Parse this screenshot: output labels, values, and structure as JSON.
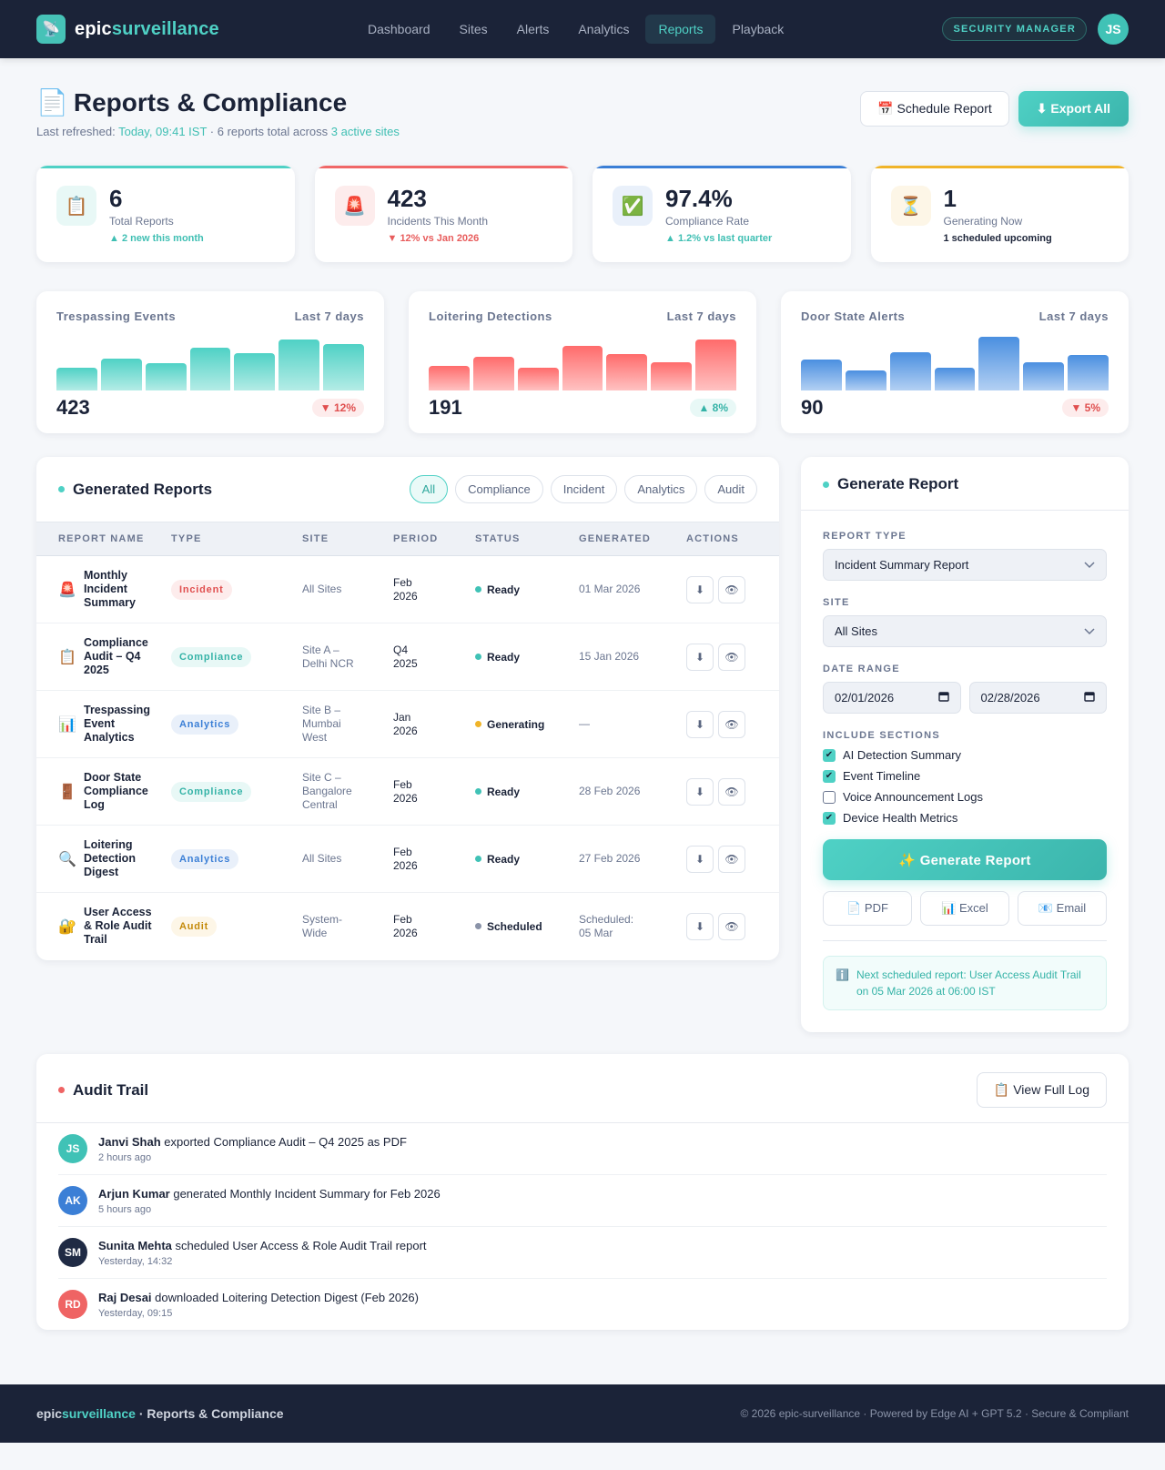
{
  "brand": {
    "prefix": "epic",
    "suffix": "surveillance",
    "icon": "satellite-dish-icon"
  },
  "nav": {
    "links": [
      {
        "label": "Dashboard",
        "active": false
      },
      {
        "label": "Sites",
        "active": false
      },
      {
        "label": "Alerts",
        "active": false
      },
      {
        "label": "Analytics",
        "active": false
      },
      {
        "label": "Reports",
        "active": true
      },
      {
        "label": "Playback",
        "active": false
      }
    ],
    "role": "SECURITY MANAGER",
    "avatar": "JS"
  },
  "header": {
    "title": "Reports & Compliance",
    "title_icon": "📄",
    "subtitle_prefix": "Last refreshed: ",
    "refreshed": "Today, 09:41 IST",
    "subtitle_mid": " · 6 reports total across ",
    "sites": "3 active sites",
    "schedule_label": "📅 Schedule Report",
    "export_label": "⬇ Export All"
  },
  "stats": [
    {
      "icon": "📋",
      "value": "6",
      "label": "Total Reports",
      "delta": "▲ 2 new this month",
      "delta_color": "#3fbfb3",
      "bar": "#4fd1c5",
      "icon_bg": "#e8f8f6"
    },
    {
      "icon": "🚨",
      "value": "423",
      "label": "Incidents This Month",
      "delta": "▼ 12% vs Jan 2026",
      "delta_color": "#e85c5c",
      "bar": "#f06767",
      "icon_bg": "#fdecec"
    },
    {
      "icon": "✅",
      "value": "97.4%",
      "label": "Compliance Rate",
      "delta": "▲ 1.2% vs last quarter",
      "delta_color": "#3fbfb3",
      "bar": "#3b7fd6",
      "icon_bg": "#e9f0fa"
    },
    {
      "icon": "⏳",
      "value": "1",
      "label": "Generating Now",
      "delta": "1 scheduled upcoming",
      "delta_color": "#1b2338",
      "bar": "#f0b429",
      "icon_bg": "#fdf6e7"
    }
  ],
  "sparklines": [
    {
      "title": "Trespassing Events",
      "range": "Last 7 days",
      "total": "423",
      "badge": "▼ 12%",
      "badge_color": "#e04f4f",
      "badge_bg": "#fdecec",
      "top": "#4fd1c5",
      "bottom": "#b4ece6",
      "bars": [
        20,
        28,
        24,
        38,
        33,
        45,
        41
      ]
    },
    {
      "title": "Loitering Detections",
      "range": "Last 7 days",
      "total": "191",
      "badge": "▲ 8%",
      "badge_color": "#35b3a7",
      "badge_bg": "#e8f8f6",
      "top": "#ff6b6b",
      "bottom": "#ffc2c2",
      "bars": [
        22,
        30,
        20,
        39,
        32,
        25,
        45
      ]
    },
    {
      "title": "Door State Alerts",
      "range": "Last 7 days",
      "total": "90",
      "badge": "▼ 5%",
      "badge_color": "#e04f4f",
      "badge_bg": "#fdecec",
      "top": "#4a8fe0",
      "bottom": "#b3d0f3",
      "bars": [
        27,
        18,
        34,
        20,
        47,
        25,
        31
      ]
    }
  ],
  "reports": {
    "title": "Generated Reports",
    "filters": [
      {
        "label": "All",
        "active": true
      },
      {
        "label": "Compliance",
        "active": false
      },
      {
        "label": "Incident",
        "active": false
      },
      {
        "label": "Analytics",
        "active": false
      },
      {
        "label": "Audit",
        "active": false
      }
    ],
    "columns": [
      "REPORT NAME",
      "TYPE",
      "SITE",
      "PERIOD",
      "STATUS",
      "GENERATED",
      "ACTIONS"
    ],
    "rows": [
      {
        "icon": "🚨",
        "name": "Monthly Incident Summary",
        "type": "Incident",
        "site": "All Sites",
        "period": "Feb 2026",
        "status": "Ready",
        "generated": "01 Mar 2026"
      },
      {
        "icon": "📋",
        "name": "Compliance Audit – Q4 2025",
        "type": "Compliance",
        "site": "Site A – Delhi NCR",
        "period": "Q4 2025",
        "status": "Ready",
        "generated": "15 Jan 2026"
      },
      {
        "icon": "📊",
        "name": "Trespassing Event Analytics",
        "type": "Analytics",
        "site": "Site B – Mumbai West",
        "period": "Jan 2026",
        "status": "Generating",
        "generated": "—"
      },
      {
        "icon": "🚪",
        "name": "Door State Compliance Log",
        "type": "Compliance",
        "site": "Site C – Bangalore Central",
        "period": "Feb 2026",
        "status": "Ready",
        "generated": "28 Feb 2026"
      },
      {
        "icon": "🔍",
        "name": "Loitering Detection Digest",
        "type": "Analytics",
        "site": "All Sites",
        "period": "Feb 2026",
        "status": "Ready",
        "generated": "27 Feb 2026"
      },
      {
        "icon": "🔐",
        "name": "User Access & Role Audit Trail",
        "type": "Audit",
        "site": "System-Wide",
        "period": "Feb 2026",
        "status": "Scheduled",
        "generated": "Scheduled: 05 Mar"
      }
    ],
    "action_download": "⬇",
    "action_view": "👁"
  },
  "generator": {
    "title": "Generate Report",
    "report_type_label": "REPORT TYPE",
    "report_type_value": "Incident Summary Report",
    "site_label": "SITE",
    "site_value": "All Sites",
    "date_label": "DATE RANGE",
    "date_from": "02/01/2026",
    "date_to": "02/28/2026",
    "sections_label": "INCLUDE SECTIONS",
    "sections": [
      {
        "label": "AI Detection Summary",
        "checked": true
      },
      {
        "label": "Event Timeline",
        "checked": true
      },
      {
        "label": "Voice Announcement Logs",
        "checked": false
      },
      {
        "label": "Device Health Metrics",
        "checked": true
      }
    ],
    "generate_label": "✨ Generate Report",
    "formats": [
      "📄 PDF",
      "📊 Excel",
      "📧 Email"
    ],
    "info_icon": "ℹ️",
    "info_text": "Next scheduled report: User Access Audit Trail on 05 Mar 2026 at 06:00 IST"
  },
  "audit": {
    "title": "Audit Trail",
    "view_label": "📋 View Full Log",
    "items": [
      {
        "initials": "JS",
        "name": "Janvi Shah",
        "action": " exported Compliance Audit – Q4 2025 as PDF",
        "time": "2 hours ago",
        "color": "#40c2b6"
      },
      {
        "initials": "AK",
        "name": "Arjun Kumar",
        "action": " generated Monthly Incident Summary for Feb 2026",
        "time": "5 hours ago",
        "color": "#3b7fd6"
      },
      {
        "initials": "SM",
        "name": "Sunita Mehta",
        "action": " scheduled User Access & Role Audit Trail report",
        "time": "Yesterday, 14:32",
        "color": "#1f2a44"
      },
      {
        "initials": "RD",
        "name": "Raj Desai",
        "action": " downloaded Loitering Detection Digest (Feb 2026)",
        "time": "Yesterday, 09:15",
        "color": "#ef6464"
      }
    ]
  },
  "footer": {
    "brand_prefix": "epic",
    "brand_suffix": "surveillance",
    "section": " · Reports & Compliance",
    "right": "© 2026 epic-surveillance · Powered by Edge AI + GPT 5.2 · Secure & Compliant"
  }
}
